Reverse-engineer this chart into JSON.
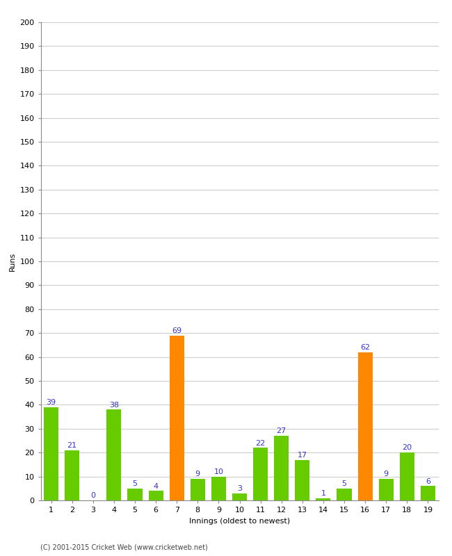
{
  "xlabel": "Innings (oldest to newest)",
  "ylabel": "Runs",
  "categories": [
    "1",
    "2",
    "3",
    "4",
    "5",
    "6",
    "7",
    "8",
    "9",
    "10",
    "11",
    "12",
    "13",
    "14",
    "15",
    "16",
    "17",
    "18",
    "19"
  ],
  "values": [
    39,
    21,
    0,
    38,
    5,
    4,
    69,
    9,
    10,
    3,
    22,
    27,
    17,
    1,
    5,
    62,
    9,
    20,
    6
  ],
  "colors": [
    "#66cc00",
    "#66cc00",
    "#66cc00",
    "#66cc00",
    "#66cc00",
    "#66cc00",
    "#ff8800",
    "#66cc00",
    "#66cc00",
    "#66cc00",
    "#66cc00",
    "#66cc00",
    "#66cc00",
    "#66cc00",
    "#66cc00",
    "#ff8800",
    "#66cc00",
    "#66cc00",
    "#66cc00"
  ],
  "ylim": [
    0,
    200
  ],
  "yticks": [
    0,
    10,
    20,
    30,
    40,
    50,
    60,
    70,
    80,
    90,
    100,
    110,
    120,
    130,
    140,
    150,
    160,
    170,
    180,
    190,
    200
  ],
  "label_color": "#3333cc",
  "footer": "(C) 2001-2015 Cricket Web (www.cricketweb.net)",
  "background_color": "#ffffff",
  "grid_color": "#cccccc",
  "bar_width": 0.7,
  "tick_fontsize": 8,
  "label_fontsize": 8,
  "axis_label_fontsize": 8,
  "footer_fontsize": 7
}
